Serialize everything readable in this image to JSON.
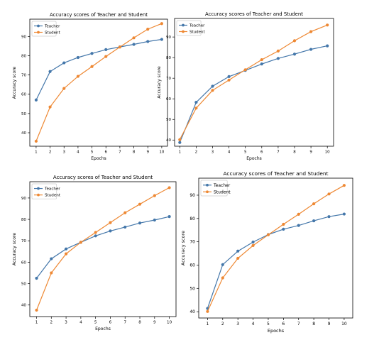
{
  "chart_data": [
    {
      "type": "line",
      "title": "Accuracy scores of Teacher and Student",
      "xlabel": "Epochs",
      "ylabel": "Accuracy score",
      "x": [
        1,
        2,
        3,
        4,
        5,
        6,
        7,
        8,
        9,
        10
      ],
      "xticks": [
        "1",
        "2",
        "3",
        "4",
        "5",
        "6",
        "7",
        "8",
        "9",
        "10"
      ],
      "yticks": [
        "40",
        "50",
        "60",
        "70",
        "80",
        "90"
      ],
      "ylim": [
        33,
        99
      ],
      "grid": false,
      "legend": "top-left",
      "series": [
        {
          "name": "Teacher",
          "color": "#4477aa",
          "values": [
            57,
            71.8,
            76.3,
            79.1,
            81.2,
            83.2,
            84.6,
            85.9,
            87.4,
            88.5
          ]
        },
        {
          "name": "Student",
          "color": "#ee8833",
          "values": [
            35.6,
            53.4,
            63,
            69.3,
            74.4,
            79.6,
            84.5,
            89.3,
            93.8,
            96.7
          ]
        }
      ]
    },
    {
      "type": "line",
      "title": "Accuracy scores of Teacher and Student",
      "xlabel": "Epochs",
      "ylabel": "Accuracy score",
      "x": [
        1,
        2,
        3,
        4,
        5,
        6,
        7,
        8,
        9,
        10
      ],
      "xticks": [
        "1",
        "2",
        "3",
        "4",
        "5",
        "6",
        "7",
        "8",
        "9",
        "10"
      ],
      "yticks": [
        "40",
        "50",
        "60",
        "70",
        "80",
        "90"
      ],
      "ylim": [
        37,
        99
      ],
      "grid": false,
      "legend": "top-left",
      "series": [
        {
          "name": "Teacher",
          "color": "#4477aa",
          "values": [
            38.8,
            58.3,
            66.1,
            70.8,
            73.8,
            76.9,
            79.6,
            81.7,
            84,
            85.7
          ]
        },
        {
          "name": "Student",
          "color": "#ee8833",
          "values": [
            40.2,
            55.5,
            64.1,
            69.1,
            74.1,
            79,
            83.2,
            88.2,
            92.6,
            95.8
          ]
        }
      ]
    },
    {
      "type": "line",
      "title": "Accuracy scores of Teacher and Student",
      "xlabel": "Epochs",
      "ylabel": "Accuracy score",
      "x": [
        1,
        2,
        3,
        4,
        5,
        6,
        7,
        8,
        9,
        10
      ],
      "xticks": [
        "1",
        "2",
        "3",
        "4",
        "5",
        "6",
        "7",
        "8",
        "9",
        "10"
      ],
      "yticks": [
        "40",
        "50",
        "60",
        "70",
        "80",
        "90"
      ],
      "ylim": [
        34.6,
        97.6
      ],
      "grid": false,
      "legend": "top-left",
      "series": [
        {
          "name": "Teacher",
          "color": "#4477aa",
          "values": [
            52.5,
            61.6,
            66.2,
            69.3,
            72.3,
            74.6,
            76.4,
            78.3,
            79.7,
            81.3
          ]
        },
        {
          "name": "Student",
          "color": "#ee8833",
          "values": [
            37.6,
            55,
            63.9,
            69.3,
            73.9,
            78.5,
            83.1,
            87.1,
            91.1,
            94.8
          ]
        }
      ]
    },
    {
      "type": "line",
      "title": "Accuracy scores of Teacher and Student",
      "xlabel": "Epochs",
      "ylabel": "Accuracy score",
      "x": [
        1,
        2,
        3,
        4,
        5,
        6,
        7,
        8,
        9,
        10
      ],
      "xticks": [
        "1",
        "2",
        "3",
        "4",
        "5",
        "6",
        "7",
        "8",
        "9",
        "10"
      ],
      "yticks": [
        "40",
        "50",
        "60",
        "70",
        "80",
        "90"
      ],
      "ylim": [
        37.3,
        97.3
      ],
      "grid": false,
      "legend": "top-left",
      "series": [
        {
          "name": "Teacher",
          "color": "#4477aa",
          "values": [
            41.4,
            60.2,
            66,
            69.9,
            73.1,
            75.4,
            77,
            79,
            80.8,
            81.9
          ]
        },
        {
          "name": "Student",
          "color": "#ee8833",
          "values": [
            40.1,
            54.5,
            62.9,
            68.4,
            73,
            77.5,
            81.8,
            86.3,
            90.5,
            94.2
          ]
        }
      ]
    }
  ]
}
